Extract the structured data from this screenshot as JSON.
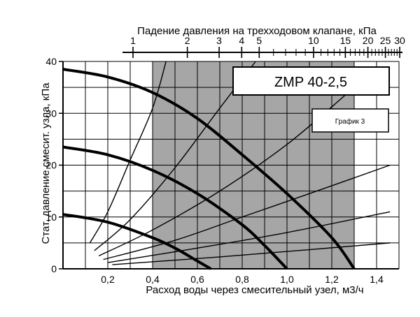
{
  "chart_data": {
    "type": "line",
    "xlabel": "Расход воды через смесительный узел, м3/ч",
    "ylabel": "Стат. давление смесит. узла, кПа",
    "xlim": [
      0,
      1.5
    ],
    "ylim": [
      0,
      40
    ],
    "x_ticks": [
      "0,2",
      "0,4",
      "0,6",
      "0,8",
      "1,0",
      "1,2",
      "1,4"
    ],
    "x_tick_values": [
      0.2,
      0.4,
      0.6,
      0.8,
      1.0,
      1.2,
      1.4
    ],
    "y_ticks": [
      "0",
      "10",
      "20",
      "30",
      "40"
    ],
    "y_tick_values": [
      0,
      10,
      20,
      30,
      40
    ],
    "secondary_axis": {
      "label": "Падение давления на трехходовом клапане, кПа",
      "major_ticks": [
        "1",
        "2",
        "3",
        "4",
        "5",
        "10",
        "15",
        "20",
        "25",
        "30"
      ],
      "major_tick_values": [
        1,
        2,
        3,
        4,
        5,
        10,
        15,
        20,
        25,
        30
      ]
    },
    "shaded_region": {
      "x_from": 0.4,
      "x_to": 1.3
    },
    "grid": true,
    "title": "ZMP 40-2,5",
    "subtitle": "График 3",
    "pump_curves": [
      {
        "name": "",
        "points": [
          [
            0.0,
            38.5
          ],
          [
            0.2,
            37.0
          ],
          [
            0.4,
            34.0
          ],
          [
            0.6,
            29.0
          ],
          [
            0.8,
            22.0
          ],
          [
            1.0,
            14.5
          ],
          [
            1.2,
            6.0
          ],
          [
            1.3,
            0.0
          ]
        ]
      },
      {
        "name": "",
        "points": [
          [
            0.0,
            23.5
          ],
          [
            0.2,
            22.0
          ],
          [
            0.4,
            19.0
          ],
          [
            0.6,
            14.5
          ],
          [
            0.8,
            8.5
          ],
          [
            0.9,
            4.5
          ],
          [
            1.0,
            0.0
          ]
        ]
      },
      {
        "name": "",
        "points": [
          [
            0.0,
            10.5
          ],
          [
            0.2,
            9.0
          ],
          [
            0.4,
            6.0
          ],
          [
            0.5,
            4.0
          ],
          [
            0.6,
            1.5
          ],
          [
            0.66,
            0.0
          ]
        ]
      }
    ],
    "valve_curves": [
      {
        "name": "",
        "points": [
          [
            0.12,
            5.0
          ],
          [
            0.2,
            11.0
          ],
          [
            0.3,
            21.0
          ],
          [
            0.4,
            31.0
          ],
          [
            0.46,
            40.0
          ]
        ]
      },
      {
        "name": "",
        "points": [
          [
            0.14,
            3.5
          ],
          [
            0.3,
            9.5
          ],
          [
            0.5,
            19.5
          ],
          [
            0.7,
            31.0
          ],
          [
            0.86,
            40.0
          ]
        ]
      },
      {
        "name": "",
        "points": [
          [
            0.16,
            2.5
          ],
          [
            0.4,
            7.5
          ],
          [
            0.7,
            15.0
          ],
          [
            1.0,
            24.0
          ],
          [
            1.26,
            33.5
          ]
        ]
      },
      {
        "name": "",
        "points": [
          [
            0.18,
            1.8
          ],
          [
            0.5,
            5.5
          ],
          [
            0.8,
            10.0
          ],
          [
            1.1,
            14.5
          ],
          [
            1.46,
            20.0
          ]
        ]
      },
      {
        "name": "",
        "points": [
          [
            0.2,
            1.2
          ],
          [
            0.6,
            4.0
          ],
          [
            1.0,
            7.0
          ],
          [
            1.46,
            11.0
          ]
        ]
      },
      {
        "name": "",
        "points": [
          [
            0.22,
            0.8
          ],
          [
            0.7,
            2.3
          ],
          [
            1.1,
            3.7
          ],
          [
            1.46,
            5.0
          ]
        ]
      }
    ]
  }
}
